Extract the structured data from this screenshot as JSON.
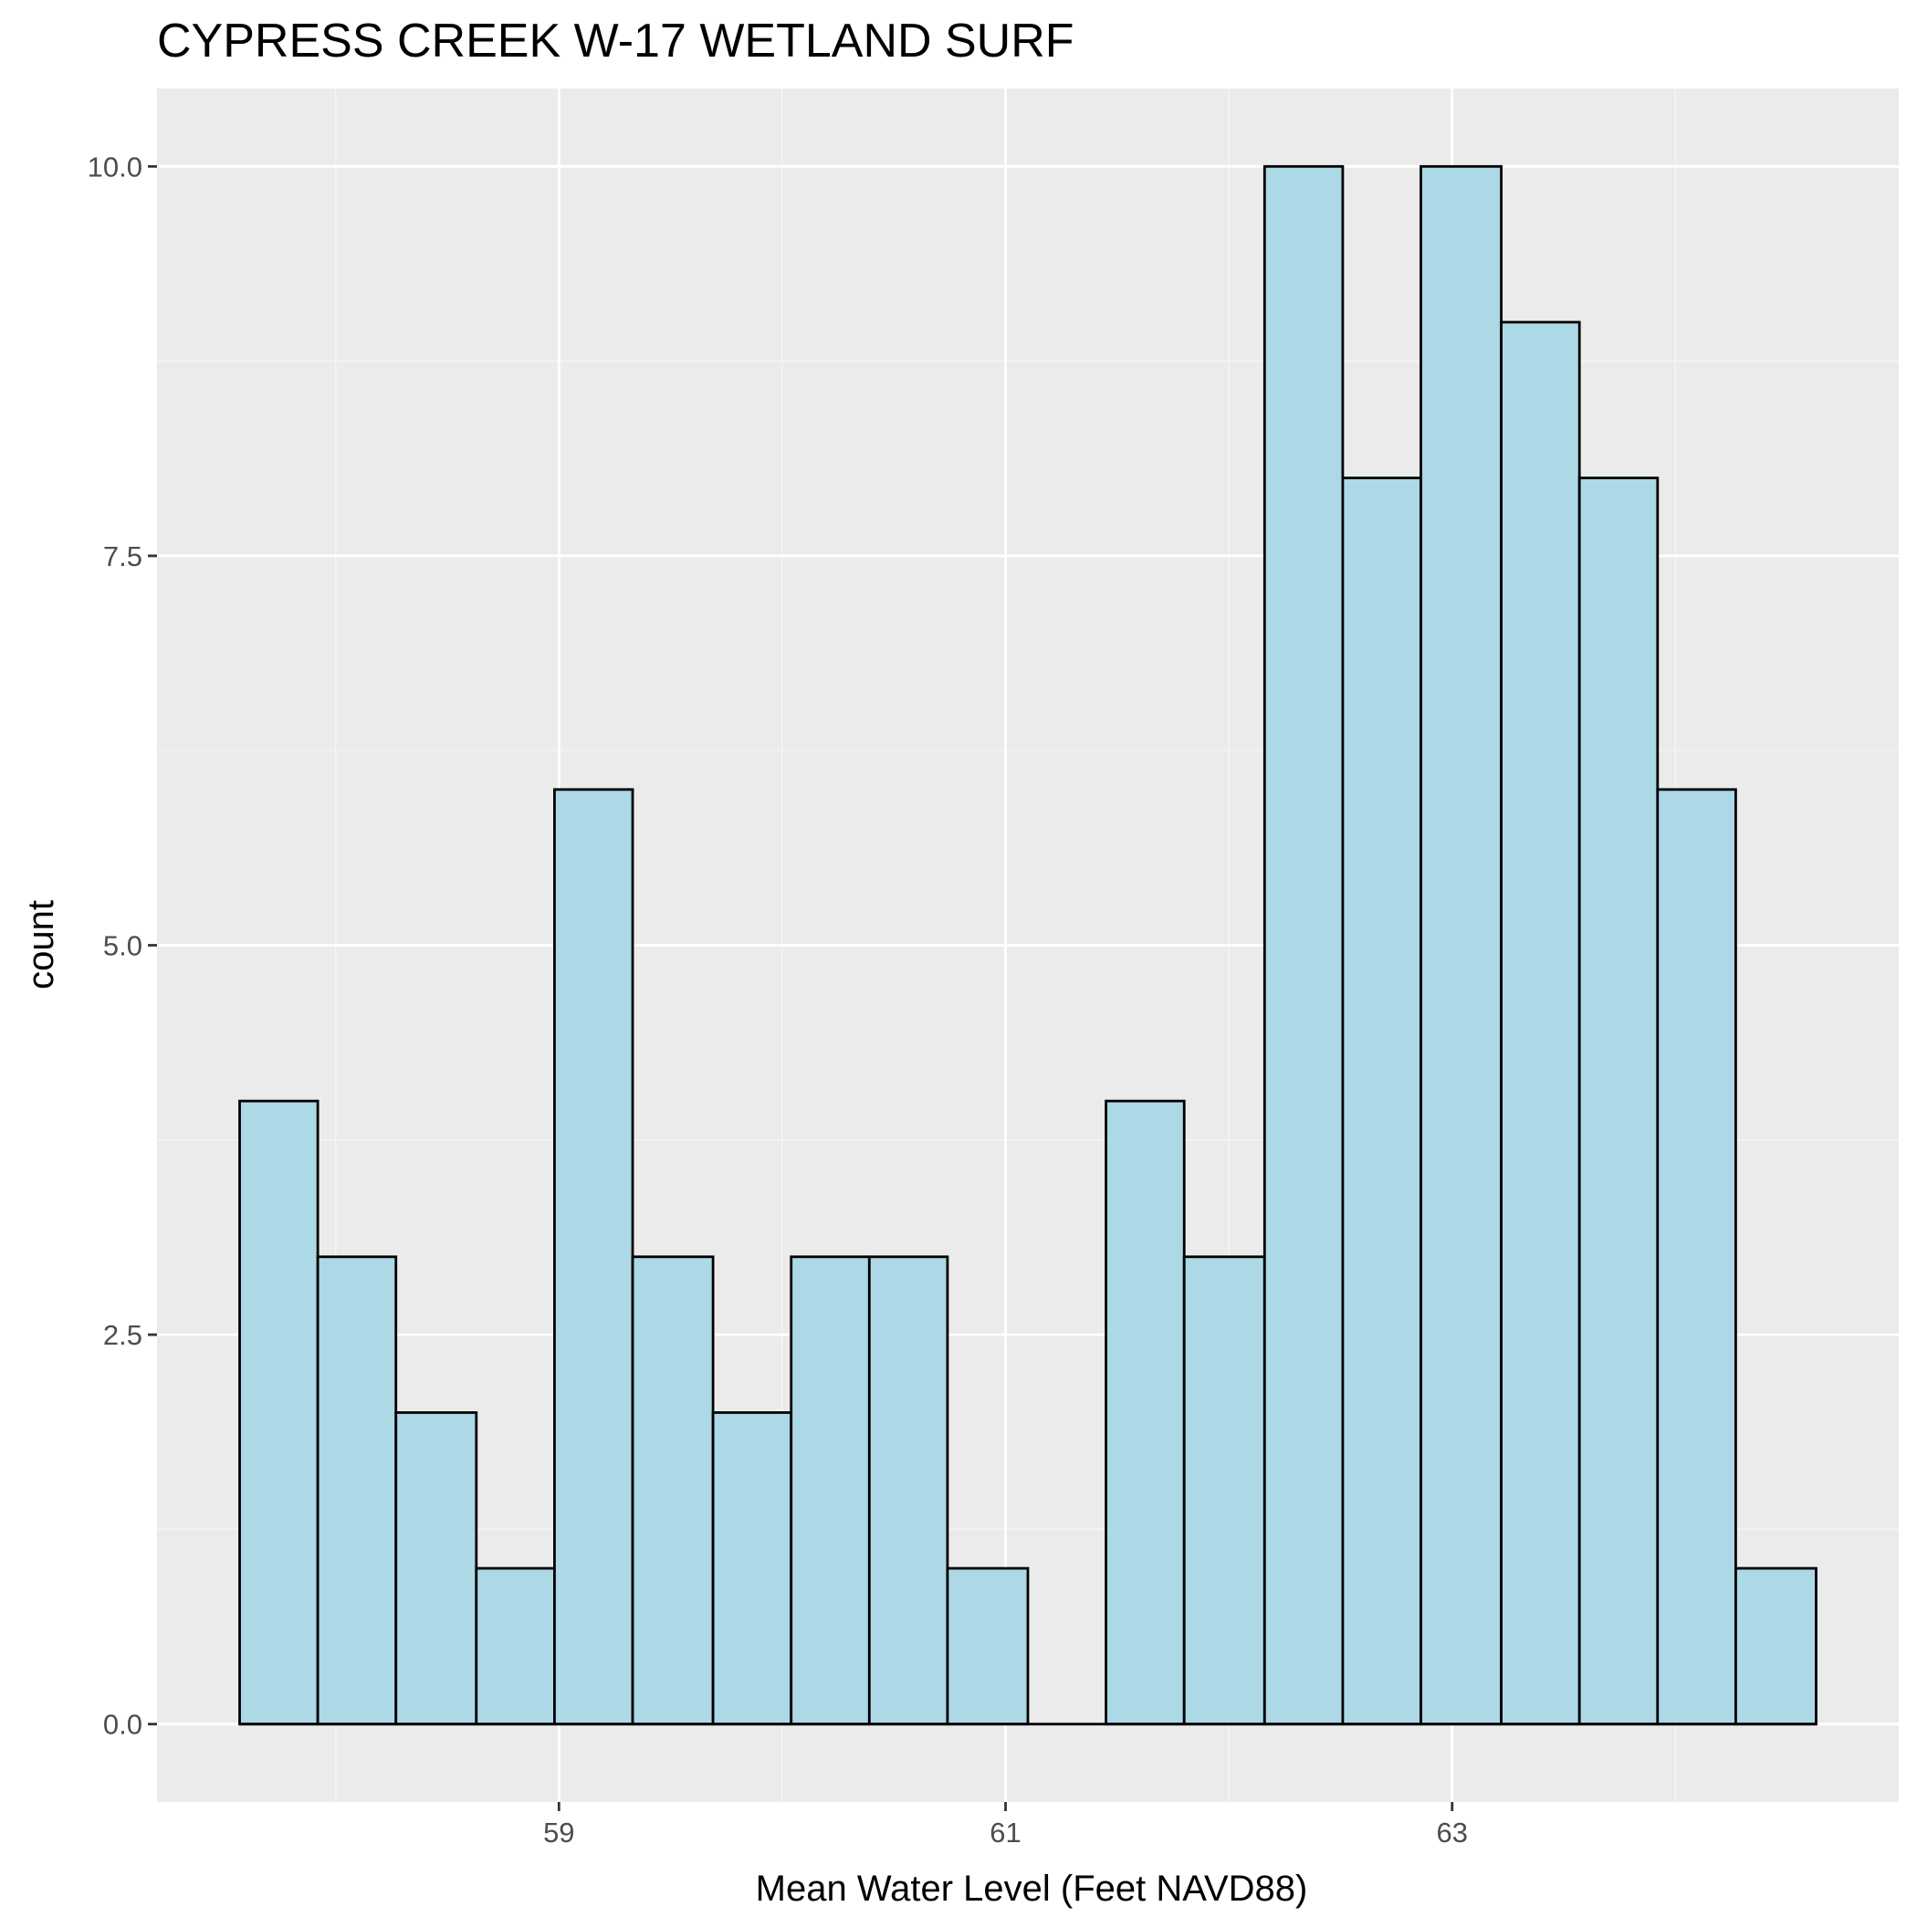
{
  "chart_data": {
    "type": "bar",
    "title": "CYPRESS CREEK W-17 WETLAND SURF",
    "xlabel": "Mean Water Level (Feet NAVD88)",
    "ylabel": "count",
    "x_ticks": [
      59,
      61,
      63
    ],
    "y_ticks": [
      0.0,
      2.5,
      5.0,
      7.5,
      10.0
    ],
    "y_tick_labels": [
      "0.0",
      "2.5",
      "5.0",
      "7.5",
      "10.0"
    ],
    "xlim": [
      57.2,
      65.0
    ],
    "ylim": [
      -0.5,
      10.5
    ],
    "bin_width": 0.353,
    "bins": [
      {
        "x0": 57.57,
        "x1": 57.92,
        "count": 4
      },
      {
        "x0": 57.92,
        "x1": 58.27,
        "count": 3
      },
      {
        "x0": 58.27,
        "x1": 58.63,
        "count": 2
      },
      {
        "x0": 58.63,
        "x1": 58.98,
        "count": 1
      },
      {
        "x0": 58.98,
        "x1": 59.33,
        "count": 6
      },
      {
        "x0": 59.33,
        "x1": 59.69,
        "count": 3
      },
      {
        "x0": 59.69,
        "x1": 60.04,
        "count": 2
      },
      {
        "x0": 60.04,
        "x1": 60.39,
        "count": 3
      },
      {
        "x0": 60.39,
        "x1": 60.74,
        "count": 3
      },
      {
        "x0": 60.74,
        "x1": 61.1,
        "count": 1
      },
      {
        "x0": 61.1,
        "x1": 61.45,
        "count": 0
      },
      {
        "x0": 61.45,
        "x1": 61.8,
        "count": 4
      },
      {
        "x0": 61.8,
        "x1": 62.16,
        "count": 3
      },
      {
        "x0": 62.16,
        "x1": 62.51,
        "count": 10
      },
      {
        "x0": 62.51,
        "x1": 62.86,
        "count": 8
      },
      {
        "x0": 62.86,
        "x1": 63.22,
        "count": 10
      },
      {
        "x0": 63.22,
        "x1": 63.57,
        "count": 9
      },
      {
        "x0": 63.57,
        "x1": 63.92,
        "count": 8
      },
      {
        "x0": 63.92,
        "x1": 64.27,
        "count": 6
      },
      {
        "x0": 64.27,
        "x1": 64.63,
        "count": 1
      }
    ],
    "grid": true,
    "colors": {
      "panel_background": "#ebebeb",
      "grid_major": "#ffffff",
      "grid_minor": "#f6f6f6",
      "bar_fill": "#add8e6",
      "bar_stroke": "#000000",
      "tick_mark": "#333333"
    }
  }
}
